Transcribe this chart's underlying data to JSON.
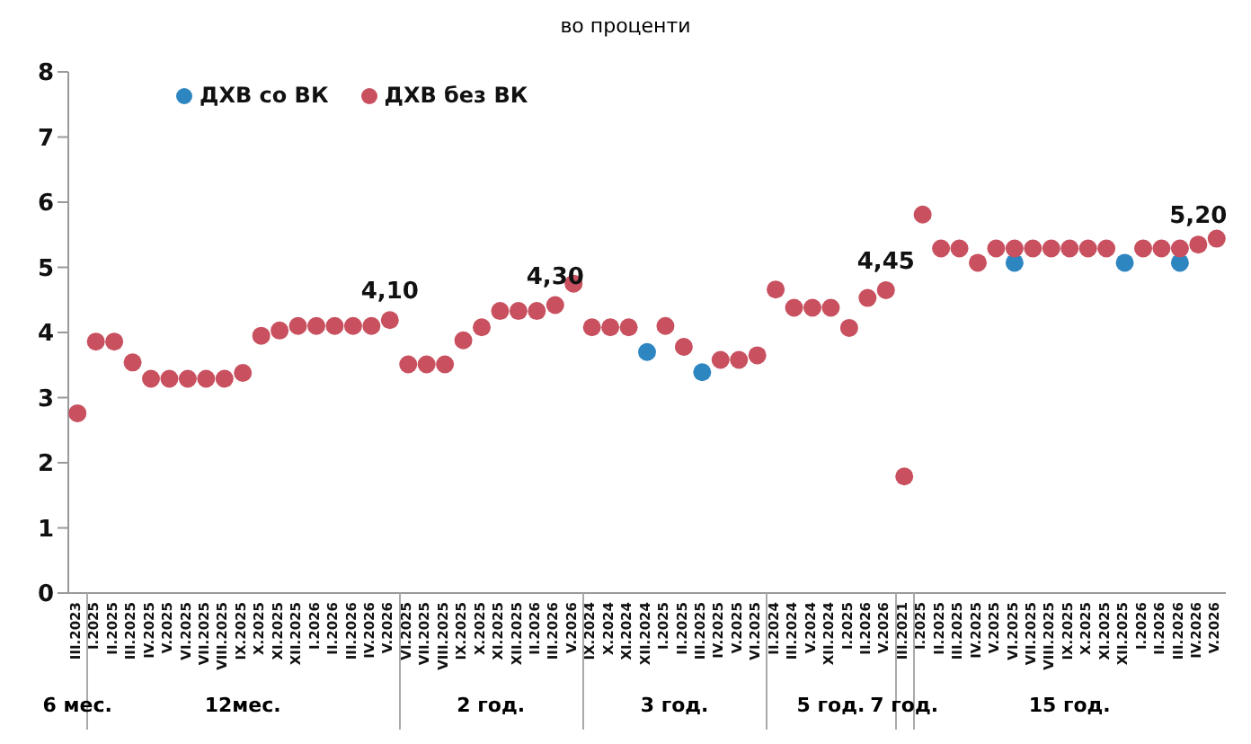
{
  "chart_data": {
    "type": "scatter",
    "title": "во проценти",
    "categories": [
      "III.2023",
      "I.2025",
      "II.2025",
      "III.2025",
      "IV.2025",
      "V.2025",
      "VI.2025",
      "VII.2025",
      "VIII.2025",
      "IX.2025",
      "X.2025",
      "XI.2025",
      "XII.2025",
      "I.2026",
      "II.2026",
      "III.2026",
      "IV.2026",
      "V.2026",
      "VI.2025",
      "VII.2025",
      "VIII.2025",
      "IX.2025",
      "X.2025",
      "XI.2025",
      "XII.2025",
      "II.2026",
      "III.2026",
      "V.2026",
      "IX.2024",
      "X.2024",
      "XI.2024",
      "XII.2024",
      "I.2025",
      "II.2025",
      "III.2025",
      "IV.2025",
      "V.2025",
      "VI.2025",
      "II.2024",
      "III.2024",
      "V.2024",
      "XII.2024",
      "I.2025",
      "II.2026",
      "V.2026",
      "III.2021",
      "I.2025",
      "II.2025",
      "III.2025",
      "IV.2025",
      "V.2025",
      "VI.2025",
      "VII.2025",
      "VIII.2025",
      "IX.2025",
      "X.2025",
      "XI.2025",
      "XII.2025",
      "I.2026",
      "II.2026",
      "III.2026",
      "IV.2026",
      "V.2026"
    ],
    "series": [
      {
        "name": "ДХВ со ВК",
        "color": "#2e86c1",
        "values": [
          null,
          null,
          null,
          null,
          null,
          null,
          null,
          null,
          null,
          null,
          null,
          null,
          null,
          null,
          null,
          null,
          null,
          null,
          null,
          null,
          null,
          null,
          null,
          null,
          null,
          null,
          null,
          null,
          null,
          null,
          null,
          3.7,
          null,
          null,
          3.39,
          null,
          null,
          null,
          null,
          null,
          null,
          null,
          null,
          null,
          null,
          null,
          null,
          null,
          null,
          null,
          null,
          5.07,
          null,
          null,
          null,
          null,
          null,
          5.07,
          null,
          null,
          5.07,
          null,
          null
        ]
      },
      {
        "name": "ДХВ без ВК",
        "color": "#c8505f",
        "values": [
          2.76,
          3.86,
          3.86,
          3.54,
          3.29,
          3.29,
          3.29,
          3.29,
          3.29,
          3.38,
          3.95,
          4.03,
          4.1,
          4.1,
          4.1,
          4.1,
          4.1,
          4.19,
          3.51,
          3.51,
          3.51,
          3.88,
          4.08,
          4.33,
          4.33,
          4.33,
          4.42,
          4.75,
          4.08,
          4.08,
          4.08,
          null,
          4.1,
          3.78,
          null,
          3.58,
          3.58,
          3.65,
          4.66,
          4.38,
          4.38,
          4.38,
          4.07,
          4.53,
          4.65,
          1.79,
          5.81,
          5.29,
          5.29,
          5.07,
          5.29,
          5.29,
          5.29,
          5.29,
          5.29,
          5.29,
          5.29,
          null,
          5.29,
          5.29,
          5.29,
          5.35,
          5.44
        ]
      }
    ],
    "ylim": [
      0,
      8
    ],
    "yticks": [
      0,
      1,
      2,
      3,
      4,
      5,
      6,
      7,
      8
    ],
    "grid": false,
    "legend": "top left",
    "marker": "circle",
    "annotations": [
      "4,10",
      "4,30",
      "4,45",
      "5,20",
      "6 мес.",
      "12мес.",
      "2 год.",
      "3 год.",
      "5 год.",
      "7 год.",
      "15 год."
    ]
  }
}
